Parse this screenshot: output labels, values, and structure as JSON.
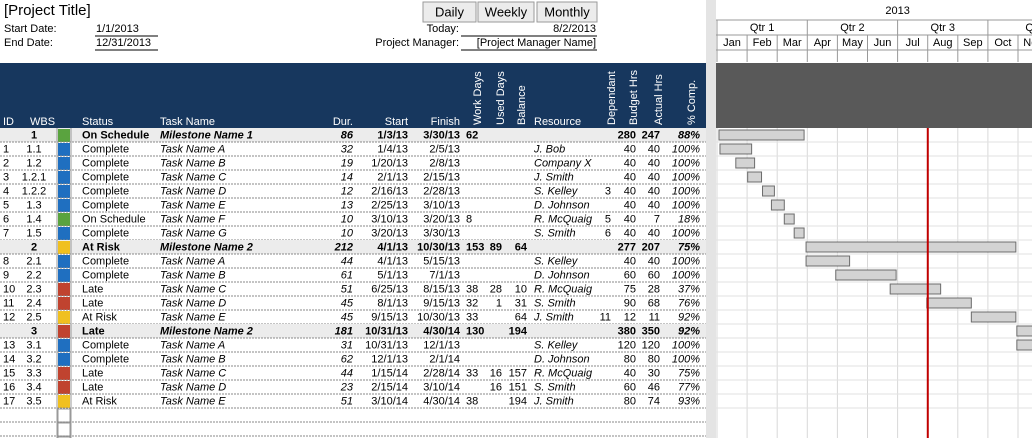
{
  "header": {
    "title": "[Project Title]",
    "start_label": "Start Date:",
    "start_date": "1/1/2013",
    "end_label": "End Date:",
    "end_date": "12/31/2013",
    "today_label": "Today:",
    "today": "8/2/2013",
    "pm_label": "Project Manager:",
    "pm": "[Project Manager Name]"
  },
  "buttons": [
    "Daily",
    "Weekly",
    "Monthly"
  ],
  "columns": [
    "ID",
    "WBS",
    "Status",
    "Task Name",
    "Dur.",
    "Start",
    "Finish",
    "Work Days",
    "Used Days",
    "Balance",
    "Resource",
    "Dependant",
    "Budget Hrs",
    "Actual Hrs",
    "% Comp."
  ],
  "rows": [
    {
      "milestone": true,
      "color": "#5aa33f",
      "cells": [
        "",
        "1",
        "On Schedule",
        "Milestone Name 1",
        "86",
        "1/3/13",
        "3/30/13",
        "62",
        "",
        "",
        "",
        "",
        "280",
        "247",
        "88%"
      ]
    },
    {
      "milestone": false,
      "color": "#1f6fc0",
      "cells": [
        "1",
        "1.1",
        "Complete",
        "Task Name A",
        "32",
        "1/4/13",
        "2/5/13",
        "",
        "",
        "",
        "J. Bob",
        "",
        "40",
        "40",
        "100%"
      ]
    },
    {
      "milestone": false,
      "color": "#1f6fc0",
      "cells": [
        "2",
        "1.2",
        "Complete",
        "Task Name B",
        "19",
        "1/20/13",
        "2/8/13",
        "",
        "",
        "",
        "Company X",
        "",
        "40",
        "40",
        "100%"
      ]
    },
    {
      "milestone": false,
      "color": "#1f6fc0",
      "cells": [
        "3",
        "1.2.1",
        "Complete",
        "Task Name C",
        "14",
        "2/1/13",
        "2/15/13",
        "",
        "",
        "",
        "J. Smith",
        "",
        "40",
        "40",
        "100%"
      ]
    },
    {
      "milestone": false,
      "color": "#1f6fc0",
      "cells": [
        "4",
        "1.2.2",
        "Complete",
        "Task Name D",
        "12",
        "2/16/13",
        "2/28/13",
        "",
        "",
        "",
        "S. Kelley",
        "3",
        "40",
        "40",
        "100%"
      ]
    },
    {
      "milestone": false,
      "color": "#1f6fc0",
      "cells": [
        "5",
        "1.3",
        "Complete",
        "Task Name E",
        "13",
        "2/25/13",
        "3/10/13",
        "",
        "",
        "",
        "D. Johnson",
        "",
        "40",
        "40",
        "100%"
      ]
    },
    {
      "milestone": false,
      "color": "#5aa33f",
      "cells": [
        "6",
        "1.4",
        "On Schedule",
        "Task Name F",
        "10",
        "3/10/13",
        "3/20/13",
        "8",
        "",
        "",
        "R. McQuaig",
        "5",
        "40",
        "7",
        "18%"
      ]
    },
    {
      "milestone": false,
      "color": "#1f6fc0",
      "cells": [
        "7",
        "1.5",
        "Complete",
        "Task Name G",
        "10",
        "3/20/13",
        "3/30/13",
        "",
        "",
        "",
        "S. Smith",
        "6",
        "40",
        "40",
        "100%"
      ]
    },
    {
      "milestone": true,
      "color": "#f0c020",
      "cells": [
        "",
        "2",
        "At Risk",
        "Milestone Name 2",
        "212",
        "4/1/13",
        "10/30/13",
        "153",
        "89",
        "64",
        "",
        "",
        "277",
        "207",
        "75%"
      ]
    },
    {
      "milestone": false,
      "color": "#1f6fc0",
      "cells": [
        "8",
        "2.1",
        "Complete",
        "Task Name A",
        "44",
        "4/1/13",
        "5/15/13",
        "",
        "",
        "",
        "S. Kelley",
        "",
        "40",
        "40",
        "100%"
      ]
    },
    {
      "milestone": false,
      "color": "#1f6fc0",
      "cells": [
        "9",
        "2.2",
        "Complete",
        "Task Name B",
        "61",
        "5/1/13",
        "7/1/13",
        "",
        "",
        "",
        "D. Johnson",
        "",
        "60",
        "60",
        "100%"
      ]
    },
    {
      "milestone": false,
      "color": "#c0432f",
      "cells": [
        "10",
        "2.3",
        "Late",
        "Task Name C",
        "51",
        "6/25/13",
        "8/15/13",
        "38",
        "28",
        "10",
        "R. McQuaig",
        "",
        "75",
        "28",
        "37%"
      ]
    },
    {
      "milestone": false,
      "color": "#c0432f",
      "cells": [
        "11",
        "2.4",
        "Late",
        "Task Name D",
        "45",
        "8/1/13",
        "9/15/13",
        "32",
        "1",
        "31",
        "S. Smith",
        "",
        "90",
        "68",
        "76%"
      ]
    },
    {
      "milestone": false,
      "color": "#f0c020",
      "cells": [
        "12",
        "2.5",
        "At Risk",
        "Task Name E",
        "45",
        "9/15/13",
        "10/30/13",
        "33",
        "",
        "64",
        "J. Smith",
        "11",
        "12",
        "11",
        "92%"
      ]
    },
    {
      "milestone": true,
      "color": "#c0432f",
      "cells": [
        "",
        "3",
        "Late",
        "Milestone Name 2",
        "181",
        "10/31/13",
        "4/30/14",
        "130",
        "",
        "194",
        "",
        "",
        "380",
        "350",
        "92%"
      ]
    },
    {
      "milestone": false,
      "color": "#1f6fc0",
      "cells": [
        "13",
        "3.1",
        "Complete",
        "Task Name A",
        "31",
        "10/31/13",
        "12/1/13",
        "",
        "",
        "",
        "S. Kelley",
        "",
        "120",
        "120",
        "100%"
      ]
    },
    {
      "milestone": false,
      "color": "#1f6fc0",
      "cells": [
        "14",
        "3.2",
        "Complete",
        "Task Name B",
        "62",
        "12/1/13",
        "2/1/14",
        "",
        "",
        "",
        "D. Johnson",
        "",
        "80",
        "80",
        "100%"
      ]
    },
    {
      "milestone": false,
      "color": "#c0432f",
      "cells": [
        "15",
        "3.3",
        "Late",
        "Task Name C",
        "44",
        "1/15/14",
        "2/28/14",
        "33",
        "16",
        "157",
        "R. McQuaig",
        "",
        "40",
        "30",
        "75%"
      ]
    },
    {
      "milestone": false,
      "color": "#c0432f",
      "cells": [
        "16",
        "3.4",
        "Late",
        "Task Name D",
        "23",
        "2/15/14",
        "3/10/14",
        "",
        "16",
        "151",
        "S. Smith",
        "",
        "60",
        "46",
        "77%"
      ]
    },
    {
      "milestone": false,
      "color": "#f0c020",
      "cells": [
        "17",
        "3.5",
        "At Risk",
        "Task Name E",
        "51",
        "3/10/14",
        "4/30/14",
        "38",
        "",
        "194",
        "J. Smith",
        "",
        "80",
        "74",
        "93%"
      ]
    }
  ],
  "timeline": {
    "year": "2013",
    "quarters": [
      "Qtr 1",
      "Qtr 2",
      "Qtr 3",
      "Qtr"
    ],
    "months": [
      "Jan",
      "Feb",
      "Mar",
      "Apr",
      "May",
      "Jun",
      "Jul",
      "Aug",
      "Sep",
      "Oct",
      "Nov"
    ]
  }
}
